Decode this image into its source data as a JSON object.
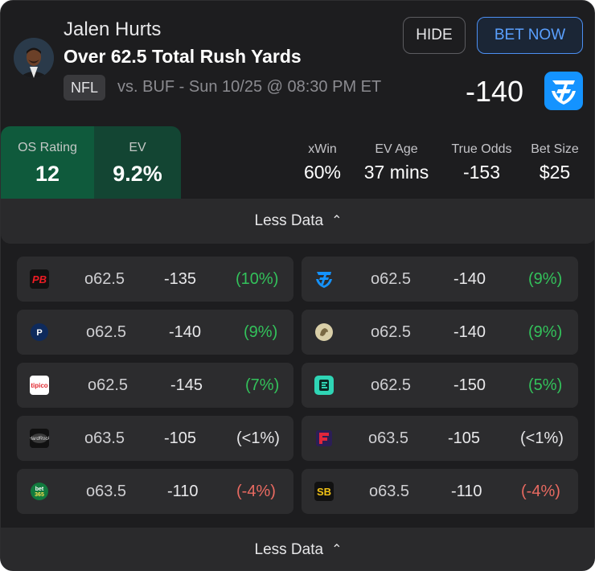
{
  "header": {
    "player_name": "Jalen Hurts",
    "bet_title": "Over 62.5 Total Rush Yards",
    "league": "NFL",
    "matchup": "vs. BUF - Sun 10/25 @ 08:30 PM ET",
    "hide_label": "HIDE",
    "bet_now_label": "BET NOW",
    "odds": "-140",
    "book_icon": "fanduel-icon"
  },
  "ratings": {
    "os_label": "OS Rating",
    "os_value": "12",
    "ev_label": "EV",
    "ev_value": "9.2%"
  },
  "metrics": [
    {
      "label": "xWin",
      "value": "60%"
    },
    {
      "label": "EV Age",
      "value": "37 mins"
    },
    {
      "label": "True Odds",
      "value": "-153"
    },
    {
      "label": "Bet Size",
      "value": "$25"
    }
  ],
  "toggle_top": "Less Data",
  "toggle_bottom": "Less Data",
  "books": [
    {
      "icon": "pointsbet-icon",
      "line": "o62.5",
      "price": "-135",
      "ev": "(10%)",
      "status": "pos"
    },
    {
      "icon": "fanduel-icon",
      "line": "o62.5",
      "price": "-140",
      "ev": "(9%)",
      "status": "pos"
    },
    {
      "icon": "playup-icon",
      "line": "o62.5",
      "price": "-140",
      "ev": "(9%)",
      "status": "pos"
    },
    {
      "icon": "betmgm-icon",
      "line": "o62.5",
      "price": "-140",
      "ev": "(9%)",
      "status": "pos"
    },
    {
      "icon": "tipico-icon",
      "line": "o62.5",
      "price": "-145",
      "ev": "(7%)",
      "status": "pos"
    },
    {
      "icon": "espnbet-icon",
      "line": "o62.5",
      "price": "-150",
      "ev": "(5%)",
      "status": "pos"
    },
    {
      "icon": "hardrock-icon",
      "line": "o63.5",
      "price": "-105",
      "ev": "(<1%)",
      "status": "neu"
    },
    {
      "icon": "fanatics-icon",
      "line": "o63.5",
      "price": "-105",
      "ev": "(<1%)",
      "status": "neu"
    },
    {
      "icon": "bet365-icon",
      "line": "o63.5",
      "price": "-110",
      "ev": "(-4%)",
      "status": "neg"
    },
    {
      "icon": "superbook-icon",
      "line": "o63.5",
      "price": "-110",
      "ev": "(-4%)",
      "status": "neg"
    }
  ],
  "colors": {
    "accent": "#4c8ff2",
    "positive": "#33c25b",
    "negative": "#e96a61",
    "os_bg": "#0f5a3c",
    "ev_bg": "#134533"
  }
}
